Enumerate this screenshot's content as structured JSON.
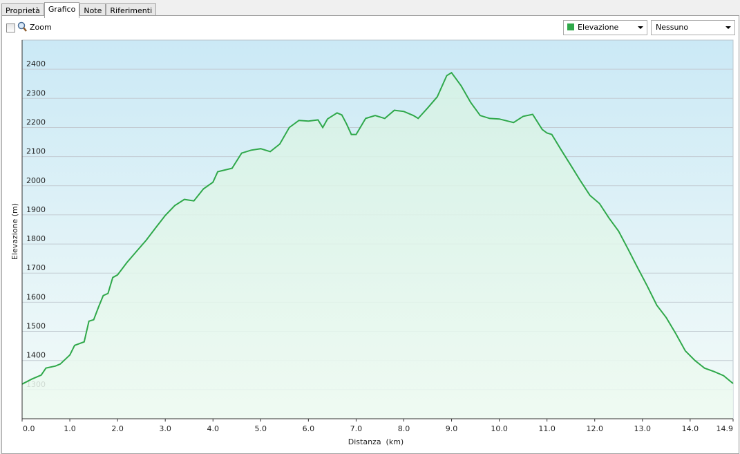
{
  "tabs": [
    "Proprietà",
    "Grafico",
    "Note",
    "Riferimenti"
  ],
  "zoom_label": "Zoom",
  "dropdowns": [
    "Elevazione",
    "Nessuno"
  ],
  "chart_data": {
    "type": "area",
    "y_label": "Elevazione (m)",
    "x_label": "Distanza  (km)",
    "x": [
      0,
      0.2,
      0.4,
      0.5,
      0.7,
      0.8,
      1.0,
      1.1,
      1.3,
      1.4,
      1.5,
      1.6,
      1.7,
      1.8,
      1.9,
      2.0,
      2.2,
      2.4,
      2.6,
      2.8,
      3.0,
      3.2,
      3.4,
      3.6,
      3.8,
      4.0,
      4.1,
      4.4,
      4.6,
      4.8,
      5.0,
      5.2,
      5.4,
      5.6,
      5.8,
      6.0,
      6.2,
      6.3,
      6.4,
      6.6,
      6.7,
      6.8,
      6.9,
      7.0,
      7.2,
      7.4,
      7.6,
      7.8,
      8.0,
      8.2,
      8.3,
      8.5,
      8.7,
      8.9,
      9.0,
      9.2,
      9.4,
      9.6,
      9.8,
      10.0,
      10.3,
      10.5,
      10.7,
      10.9,
      11.0,
      11.1,
      11.3,
      11.5,
      11.7,
      11.9,
      12.1,
      12.3,
      12.5,
      12.7,
      12.9,
      13.1,
      13.3,
      13.5,
      13.7,
      13.9,
      14.1,
      14.3,
      14.5,
      14.7,
      14.9
    ],
    "series": [
      {
        "name": "Elevazione",
        "color": "#2fa84a",
        "values": [
          1319,
          1336,
          1350,
          1374,
          1381,
          1388,
          1419,
          1452,
          1464,
          1535,
          1540,
          1583,
          1623,
          1630,
          1685,
          1694,
          1737,
          1775,
          1813,
          1856,
          1898,
          1932,
          1953,
          1948,
          1989,
          2012,
          2048,
          2060,
          2112,
          2122,
          2127,
          2117,
          2143,
          2200,
          2224,
          2222,
          2226,
          2200,
          2229,
          2250,
          2243,
          2212,
          2176,
          2176,
          2231,
          2241,
          2231,
          2259,
          2255,
          2241,
          2231,
          2267,
          2305,
          2378,
          2388,
          2343,
          2286,
          2241,
          2231,
          2229,
          2217,
          2238,
          2245,
          2193,
          2181,
          2176,
          2122,
          2070,
          2017,
          1967,
          1939,
          1889,
          1844,
          1782,
          1718,
          1656,
          1590,
          1547,
          1492,
          1433,
          1400,
          1374,
          1362,
          1348,
          1321
        ]
      }
    ],
    "xlim": [
      0,
      14.9
    ],
    "ylim": [
      1200,
      2500
    ],
    "xticks": [
      {
        "value": 0,
        "label": "0.0"
      },
      {
        "value": 1,
        "label": "1.0"
      },
      {
        "value": 2,
        "label": "2.0"
      },
      {
        "value": 3,
        "label": "3.0"
      },
      {
        "value": 4,
        "label": "4.0"
      },
      {
        "value": 5,
        "label": "5.0"
      },
      {
        "value": 6,
        "label": "6.0"
      },
      {
        "value": 7,
        "label": "7.0"
      },
      {
        "value": 8,
        "label": "8.0"
      },
      {
        "value": 9,
        "label": "9.0"
      },
      {
        "value": 10,
        "label": "10.0"
      },
      {
        "value": 11,
        "label": "11.0"
      },
      {
        "value": 12,
        "label": "12.0"
      },
      {
        "value": 13,
        "label": "13.0"
      },
      {
        "value": 14,
        "label": "14.0"
      },
      14.9
    ],
    "yticks": [
      1300,
      1400,
      1500,
      1600,
      1700,
      1800,
      1900,
      2000,
      2100,
      2200,
      2300,
      2400
    ],
    "grid": true
  }
}
